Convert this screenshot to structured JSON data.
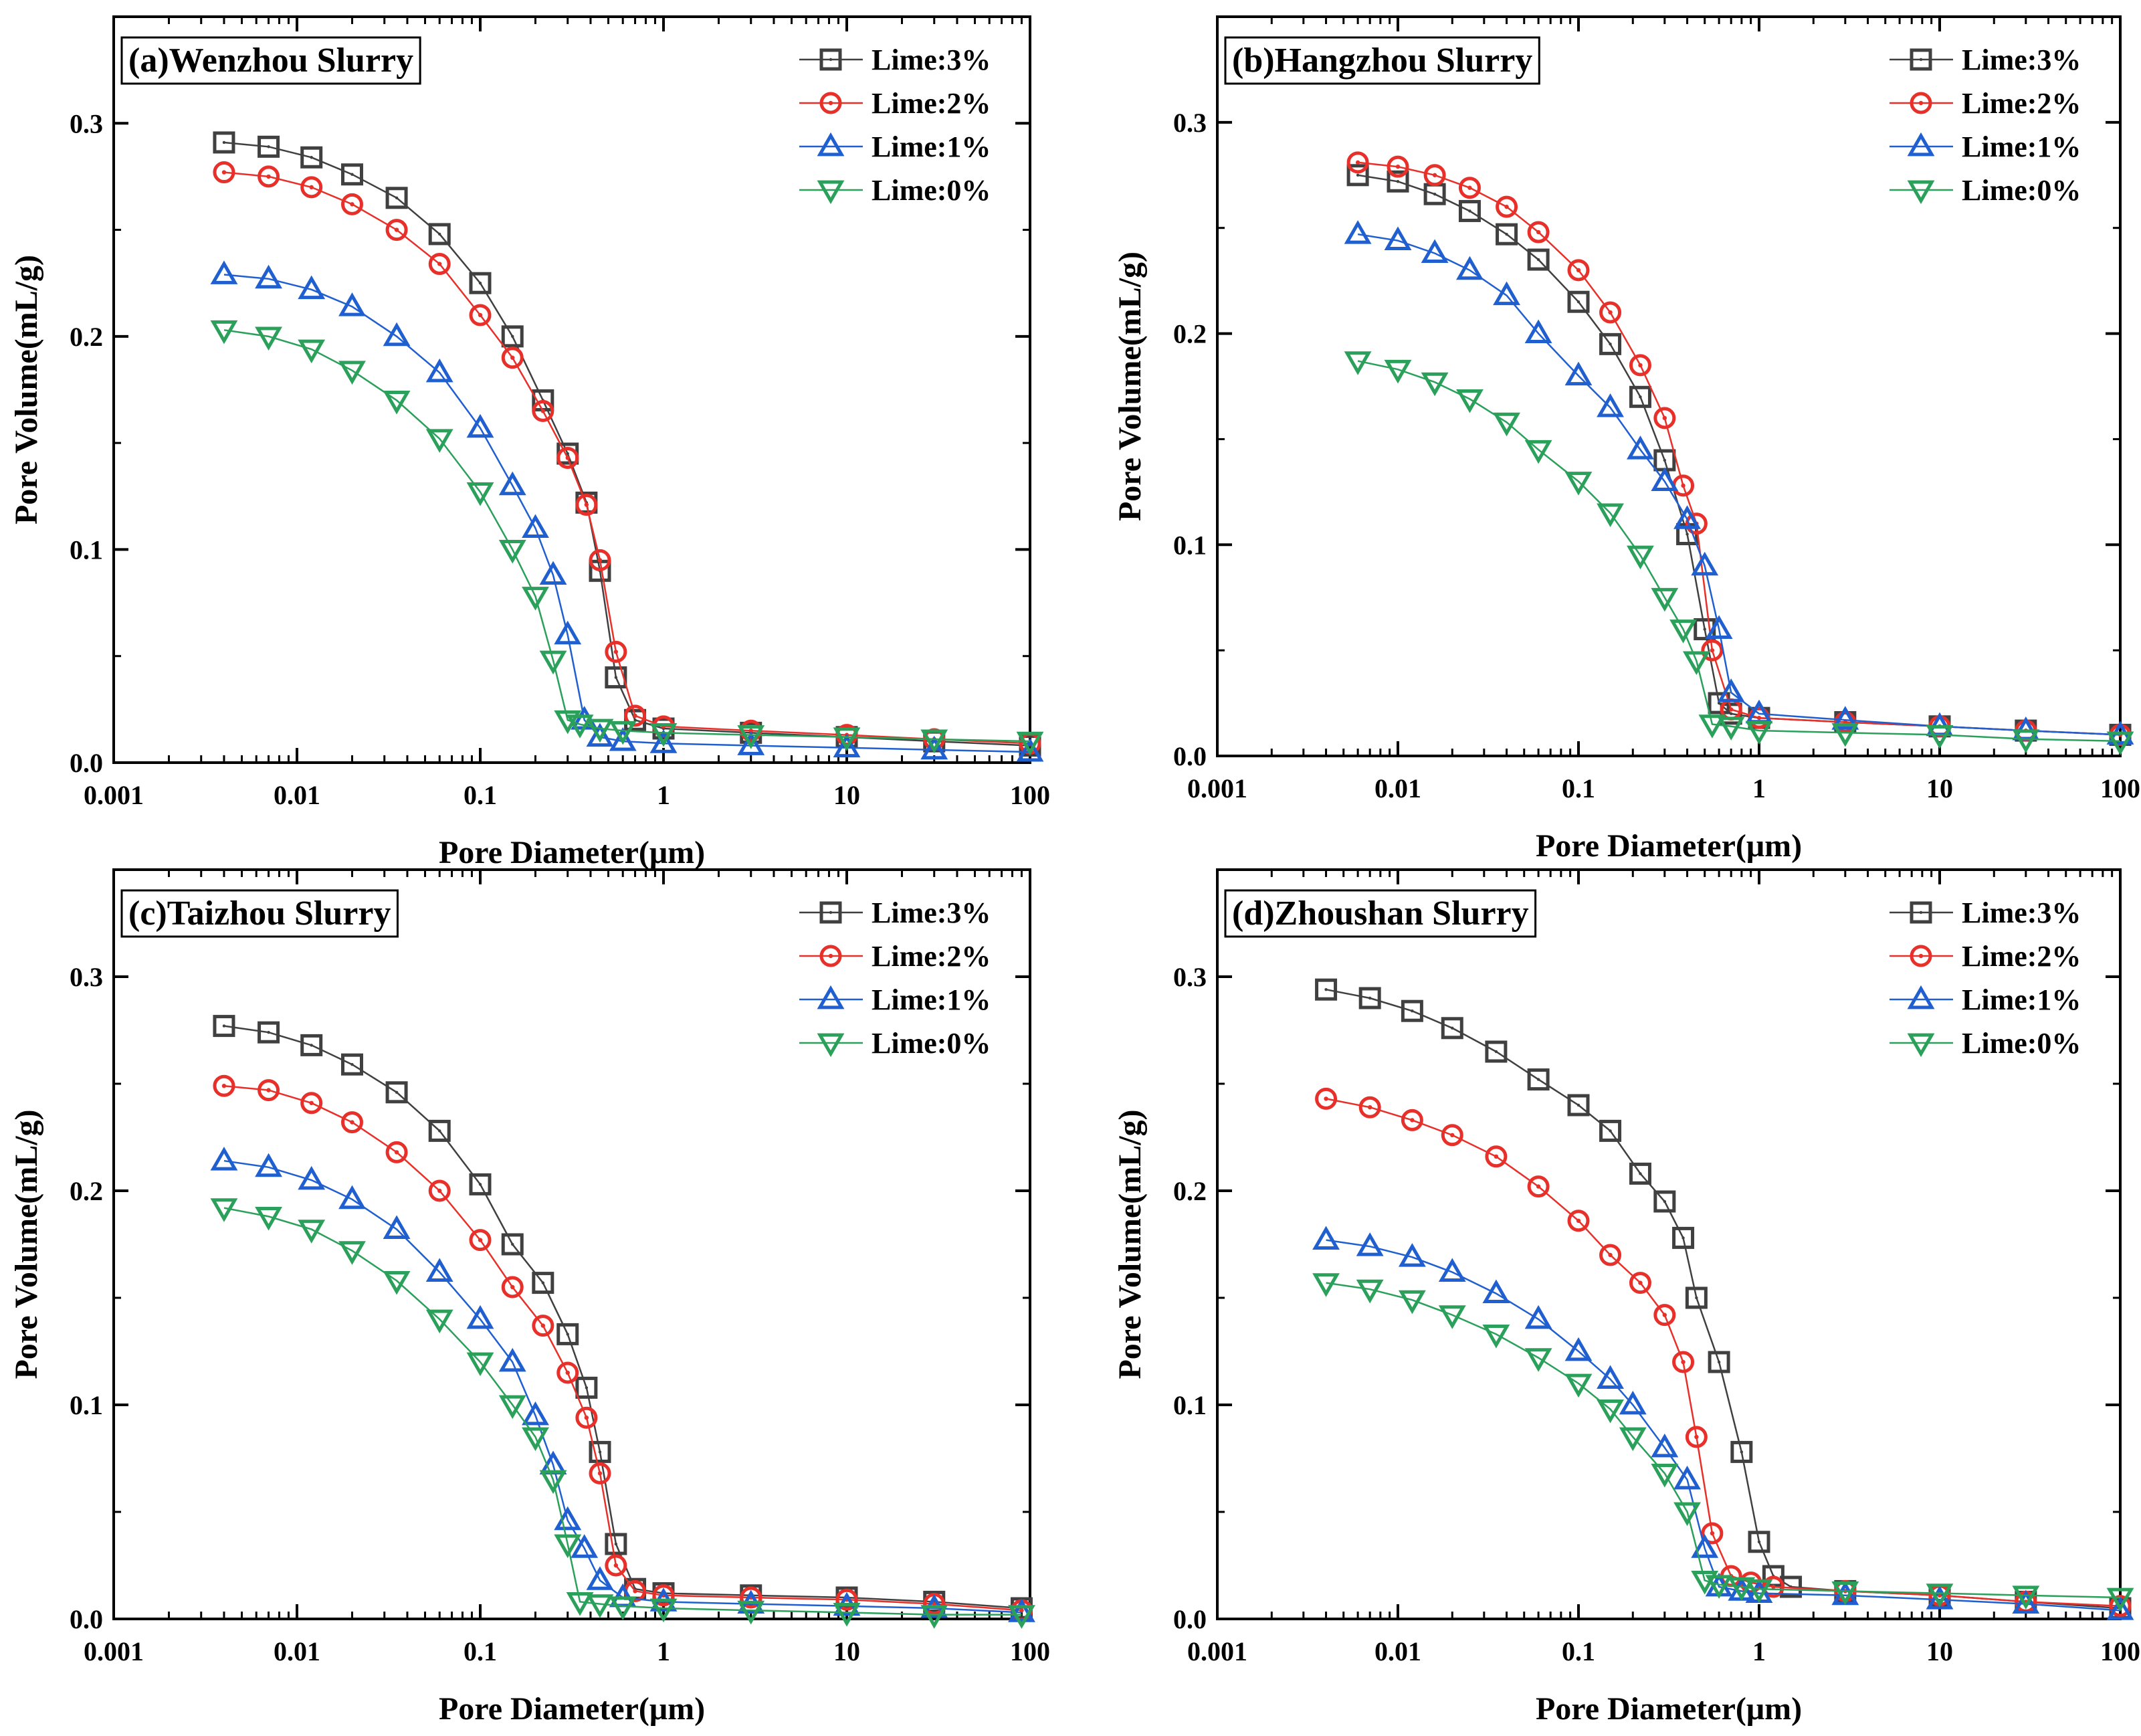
{
  "figure": {
    "description_panels": 4
  },
  "chart_data": [
    {
      "type": "line",
      "title": "(a)Wenzhou Slurry",
      "xlabel": "Pore Diameter(μm)",
      "ylabel": "Pore Volume(mL/g)",
      "xscale": "log",
      "xlim": [
        0.001,
        100
      ],
      "ylim": [
        0,
        0.35
      ],
      "xticks": [
        "0.001",
        "0.01",
        "0.1",
        "1",
        "10",
        "100"
      ],
      "yticks": [
        "0.0",
        "0.1",
        "0.2",
        "0.3"
      ],
      "legend_position": "top-right",
      "series": [
        {
          "name": "Lime:3%",
          "color": "#404040",
          "marker": "square",
          "x": [
            0.004,
            0.007,
            0.012,
            0.02,
            0.035,
            0.06,
            0.1,
            0.15,
            0.22,
            0.3,
            0.38,
            0.45,
            0.55,
            0.7,
            1,
            3,
            10,
            30,
            100
          ],
          "y": [
            0.291,
            0.289,
            0.284,
            0.276,
            0.265,
            0.248,
            0.225,
            0.2,
            0.17,
            0.145,
            0.122,
            0.09,
            0.04,
            0.02,
            0.016,
            0.014,
            0.012,
            0.01,
            0.008
          ]
        },
        {
          "name": "Lime:2%",
          "color": "#e8302a",
          "marker": "circle",
          "x": [
            0.004,
            0.007,
            0.012,
            0.02,
            0.035,
            0.06,
            0.1,
            0.15,
            0.22,
            0.3,
            0.38,
            0.45,
            0.55,
            0.7,
            1,
            3,
            10,
            30,
            100
          ],
          "y": [
            0.277,
            0.275,
            0.27,
            0.262,
            0.25,
            0.234,
            0.21,
            0.19,
            0.165,
            0.143,
            0.121,
            0.095,
            0.052,
            0.022,
            0.017,
            0.015,
            0.013,
            0.011,
            0.009
          ]
        },
        {
          "name": "Lime:1%",
          "color": "#1f5fd0",
          "marker": "triangle-up",
          "x": [
            0.004,
            0.007,
            0.012,
            0.02,
            0.035,
            0.06,
            0.1,
            0.15,
            0.2,
            0.25,
            0.3,
            0.37,
            0.45,
            0.6,
            1,
            3,
            10,
            30,
            100
          ],
          "y": [
            0.229,
            0.227,
            0.222,
            0.214,
            0.2,
            0.183,
            0.157,
            0.13,
            0.11,
            0.088,
            0.06,
            0.02,
            0.012,
            0.01,
            0.009,
            0.008,
            0.007,
            0.006,
            0.005
          ]
        },
        {
          "name": "Lime:0%",
          "color": "#2aa05a",
          "marker": "triangle-down",
          "x": [
            0.004,
            0.007,
            0.012,
            0.02,
            0.035,
            0.06,
            0.1,
            0.15,
            0.2,
            0.25,
            0.3,
            0.35,
            0.45,
            0.6,
            1,
            3,
            10,
            30,
            100
          ],
          "y": [
            0.203,
            0.2,
            0.194,
            0.184,
            0.17,
            0.152,
            0.127,
            0.1,
            0.078,
            0.048,
            0.02,
            0.018,
            0.016,
            0.015,
            0.014,
            0.013,
            0.012,
            0.011,
            0.01
          ]
        }
      ]
    },
    {
      "type": "line",
      "title": "(b)Hangzhou Slurry",
      "xlabel": "Pore Diameter(μm)",
      "ylabel": "Pore Volume(mL/g)",
      "xscale": "log",
      "xlim": [
        0.001,
        100
      ],
      "ylim": [
        0,
        0.35
      ],
      "xticks": [
        "0.001",
        "0.01",
        "0.1",
        "1",
        "10",
        "100"
      ],
      "yticks": [
        "0.0",
        "0.1",
        "0.2",
        "0.3"
      ],
      "legend_position": "top-right",
      "series": [
        {
          "name": "Lime:3%",
          "color": "#404040",
          "marker": "square",
          "x": [
            0.006,
            0.01,
            0.016,
            0.025,
            0.04,
            0.06,
            0.1,
            0.15,
            0.22,
            0.3,
            0.4,
            0.5,
            0.6,
            0.7,
            1,
            3,
            10,
            30,
            100
          ],
          "y": [
            0.275,
            0.272,
            0.266,
            0.258,
            0.247,
            0.235,
            0.215,
            0.195,
            0.17,
            0.14,
            0.105,
            0.06,
            0.025,
            0.02,
            0.018,
            0.016,
            0.014,
            0.012,
            0.01
          ]
        },
        {
          "name": "Lime:2%",
          "color": "#e8302a",
          "marker": "circle",
          "x": [
            0.006,
            0.01,
            0.016,
            0.025,
            0.04,
            0.06,
            0.1,
            0.15,
            0.22,
            0.3,
            0.38,
            0.45,
            0.55,
            0.7,
            1,
            3,
            10,
            30,
            100
          ],
          "y": [
            0.281,
            0.279,
            0.275,
            0.269,
            0.26,
            0.248,
            0.23,
            0.21,
            0.185,
            0.16,
            0.128,
            0.11,
            0.05,
            0.022,
            0.018,
            0.016,
            0.014,
            0.012,
            0.01
          ]
        },
        {
          "name": "Lime:1%",
          "color": "#1f5fd0",
          "marker": "triangle-up",
          "x": [
            0.006,
            0.01,
            0.016,
            0.025,
            0.04,
            0.06,
            0.1,
            0.15,
            0.22,
            0.3,
            0.4,
            0.5,
            0.6,
            0.7,
            1,
            3,
            10,
            30,
            100
          ],
          "y": [
            0.247,
            0.244,
            0.238,
            0.23,
            0.218,
            0.2,
            0.18,
            0.165,
            0.145,
            0.13,
            0.112,
            0.09,
            0.06,
            0.03,
            0.02,
            0.017,
            0.014,
            0.012,
            0.01
          ]
        },
        {
          "name": "Lime:0%",
          "color": "#2aa05a",
          "marker": "triangle-down",
          "x": [
            0.006,
            0.01,
            0.016,
            0.025,
            0.04,
            0.06,
            0.1,
            0.15,
            0.22,
            0.3,
            0.38,
            0.45,
            0.55,
            0.7,
            1,
            3,
            10,
            30,
            100
          ],
          "y": [
            0.187,
            0.183,
            0.177,
            0.169,
            0.158,
            0.145,
            0.13,
            0.115,
            0.095,
            0.075,
            0.06,
            0.045,
            0.015,
            0.014,
            0.012,
            0.011,
            0.01,
            0.008,
            0.007
          ]
        }
      ]
    },
    {
      "type": "line",
      "title": "(c)Taizhou Slurry",
      "xlabel": "Pore Diameter(μm)",
      "ylabel": "Pore Volume(mL/g)",
      "xscale": "log",
      "xlim": [
        0.001,
        100
      ],
      "ylim": [
        0,
        0.35
      ],
      "xticks": [
        "0.001",
        "0.01",
        "0.1",
        "1",
        "10",
        "100"
      ],
      "yticks": [
        "0.0",
        "0.1",
        "0.2",
        "0.3"
      ],
      "legend_position": "top-right",
      "series": [
        {
          "name": "Lime:3%",
          "color": "#404040",
          "marker": "square",
          "x": [
            0.004,
            0.007,
            0.012,
            0.02,
            0.035,
            0.06,
            0.1,
            0.15,
            0.22,
            0.3,
            0.38,
            0.45,
            0.55,
            0.7,
            1,
            3,
            10,
            30,
            90
          ],
          "y": [
            0.277,
            0.274,
            0.268,
            0.259,
            0.246,
            0.228,
            0.203,
            0.175,
            0.157,
            0.133,
            0.108,
            0.078,
            0.035,
            0.014,
            0.012,
            0.011,
            0.01,
            0.008,
            0.005
          ]
        },
        {
          "name": "Lime:2%",
          "color": "#e8302a",
          "marker": "circle",
          "x": [
            0.004,
            0.007,
            0.012,
            0.02,
            0.035,
            0.06,
            0.1,
            0.15,
            0.22,
            0.3,
            0.38,
            0.45,
            0.55,
            0.7,
            1,
            3,
            10,
            30,
            90
          ],
          "y": [
            0.249,
            0.247,
            0.241,
            0.232,
            0.218,
            0.2,
            0.177,
            0.155,
            0.137,
            0.115,
            0.094,
            0.068,
            0.025,
            0.013,
            0.011,
            0.01,
            0.009,
            0.007,
            0.004
          ]
        },
        {
          "name": "Lime:1%",
          "color": "#1f5fd0",
          "marker": "triangle-up",
          "x": [
            0.004,
            0.007,
            0.012,
            0.02,
            0.035,
            0.06,
            0.1,
            0.15,
            0.2,
            0.25,
            0.3,
            0.37,
            0.45,
            0.6,
            1,
            3,
            10,
            30,
            90
          ],
          "y": [
            0.214,
            0.211,
            0.205,
            0.196,
            0.182,
            0.162,
            0.14,
            0.12,
            0.095,
            0.072,
            0.046,
            0.033,
            0.018,
            0.01,
            0.008,
            0.007,
            0.006,
            0.005,
            0.003
          ]
        },
        {
          "name": "Lime:0%",
          "color": "#2aa05a",
          "marker": "triangle-down",
          "x": [
            0.004,
            0.007,
            0.012,
            0.02,
            0.035,
            0.06,
            0.1,
            0.15,
            0.2,
            0.25,
            0.3,
            0.35,
            0.45,
            0.6,
            1,
            3,
            10,
            30,
            90
          ],
          "y": [
            0.192,
            0.188,
            0.182,
            0.172,
            0.158,
            0.14,
            0.12,
            0.1,
            0.085,
            0.065,
            0.035,
            0.008,
            0.007,
            0.006,
            0.005,
            0.004,
            0.003,
            0.002,
            0.002
          ]
        }
      ]
    },
    {
      "type": "line",
      "title": "(d)Zhoushan Slurry",
      "xlabel": "Pore Diameter(μm)",
      "ylabel": "Pore Volume(mL/g)",
      "xscale": "log",
      "xlim": [
        0.001,
        100
      ],
      "ylim": [
        0,
        0.35
      ],
      "xticks": [
        "0.001",
        "0.01",
        "0.1",
        "1",
        "10",
        "100"
      ],
      "yticks": [
        "0.0",
        "0.1",
        "0.2",
        "0.3"
      ],
      "legend_position": "top-right",
      "series": [
        {
          "name": "Lime:3%",
          "color": "#404040",
          "marker": "square",
          "x": [
            0.004,
            0.007,
            0.012,
            0.02,
            0.035,
            0.06,
            0.1,
            0.15,
            0.22,
            0.3,
            0.38,
            0.45,
            0.6,
            0.8,
            1,
            1.2,
            1.5,
            3,
            10,
            30,
            100
          ],
          "y": [
            0.294,
            0.29,
            0.284,
            0.276,
            0.265,
            0.252,
            0.24,
            0.228,
            0.208,
            0.195,
            0.178,
            0.15,
            0.12,
            0.078,
            0.036,
            0.02,
            0.015,
            0.013,
            0.011,
            0.008,
            0.005
          ]
        },
        {
          "name": "Lime:2%",
          "color": "#e8302a",
          "marker": "circle",
          "x": [
            0.004,
            0.007,
            0.012,
            0.02,
            0.035,
            0.06,
            0.1,
            0.15,
            0.22,
            0.3,
            0.38,
            0.45,
            0.55,
            0.7,
            0.9,
            1.2,
            3,
            10,
            30,
            100
          ],
          "y": [
            0.243,
            0.239,
            0.233,
            0.226,
            0.216,
            0.202,
            0.186,
            0.17,
            0.157,
            0.142,
            0.12,
            0.085,
            0.04,
            0.02,
            0.017,
            0.015,
            0.013,
            0.011,
            0.008,
            0.006
          ]
        },
        {
          "name": "Lime:1%",
          "color": "#1f5fd0",
          "marker": "triangle-up",
          "x": [
            0.004,
            0.007,
            0.012,
            0.02,
            0.035,
            0.06,
            0.1,
            0.15,
            0.2,
            0.3,
            0.4,
            0.5,
            0.6,
            0.8,
            1,
            3,
            10,
            30,
            100
          ],
          "y": [
            0.177,
            0.174,
            0.169,
            0.162,
            0.152,
            0.14,
            0.125,
            0.112,
            0.1,
            0.08,
            0.065,
            0.033,
            0.015,
            0.013,
            0.012,
            0.011,
            0.009,
            0.007,
            0.004
          ]
        },
        {
          "name": "Lime:0%",
          "color": "#2aa05a",
          "marker": "triangle-down",
          "x": [
            0.004,
            0.007,
            0.012,
            0.02,
            0.035,
            0.06,
            0.1,
            0.15,
            0.2,
            0.3,
            0.4,
            0.5,
            0.6,
            0.8,
            1,
            3,
            10,
            30,
            100
          ],
          "y": [
            0.157,
            0.154,
            0.149,
            0.142,
            0.133,
            0.122,
            0.11,
            0.098,
            0.085,
            0.068,
            0.05,
            0.018,
            0.016,
            0.015,
            0.014,
            0.013,
            0.012,
            0.011,
            0.01
          ]
        }
      ]
    }
  ]
}
